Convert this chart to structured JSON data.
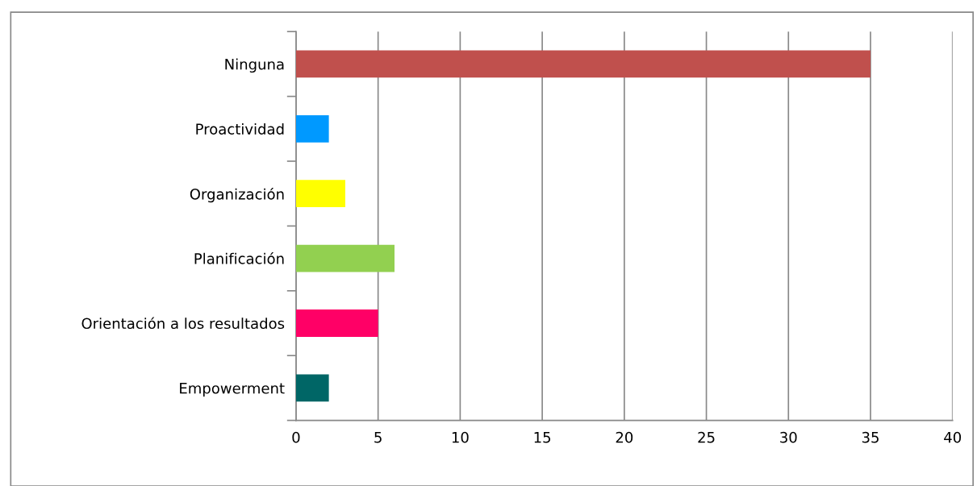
{
  "chart_data": {
    "type": "bar",
    "orientation": "horizontal",
    "categories": [
      "Ninguna",
      "Proactividad",
      "Organización",
      "Planificación",
      "Orientación a los resultados",
      "Empowerment"
    ],
    "values": [
      35,
      2,
      3,
      6,
      5,
      2
    ],
    "colors": [
      "#c0504d",
      "#0099ff",
      "#ffff00",
      "#92d050",
      "#ff0066",
      "#006666"
    ],
    "xlim": [
      0,
      40
    ],
    "xticks": [
      0,
      5,
      10,
      15,
      20,
      25,
      30,
      35,
      40
    ],
    "grid": "x",
    "legend": false
  }
}
